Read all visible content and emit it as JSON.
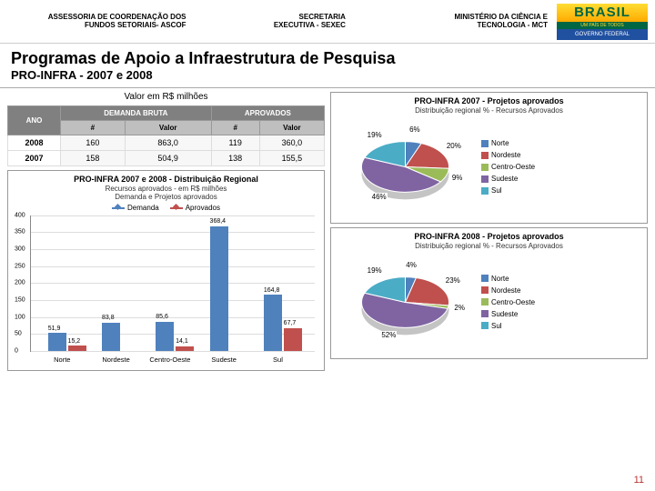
{
  "header": {
    "block1_l1": "ASSESSORIA DE COORDENAÇÃO DOS",
    "block1_l2": "FUNDOS SETORIAIS- ASCOF",
    "block2_l1": "SECRETARIA",
    "block2_l2": "EXECUTIVA - SEXEC",
    "block3_l1": "MINISTÉRIO DA CIÊNCIA E",
    "block3_l2": "TECNOLOGIA - MCT",
    "brasil": "BRASIL",
    "brasil_mid": "UM PAÍS DE TODOS",
    "brasil_bot": "GOVERNO FEDERAL"
  },
  "title": "Programas de Apoio a Infraestrutura de Pesquisa",
  "subtitle": "PRO-INFRA - 2007 e 2008",
  "table": {
    "caption": "Valor em R$ milhões",
    "head_ano": "ANO",
    "head_demanda": "DEMANDA BRUTA",
    "head_aprov": "APROVADOS",
    "sub_num": "#",
    "sub_valor": "Valor",
    "rows": [
      {
        "ano": "2008",
        "dn": "160",
        "dv": "863,0",
        "an": "119",
        "av": "360,0"
      },
      {
        "ano": "2007",
        "dn": "158",
        "dv": "504,9",
        "an": "138",
        "av": "155,5"
      }
    ]
  },
  "barchart": {
    "title": "PRO-INFRA 2007 e 2008 - Distribuição Regional",
    "sub1": "Recursos aprovados - em R$ milhões",
    "sub2": "Demanda e Projetos aprovados",
    "legend": {
      "demanda": "Demanda",
      "aprov": "Aprovados"
    },
    "colors": {
      "demanda": "#4f81bd",
      "aprov": "#c0504d",
      "grid": "#dddddd",
      "bg": "#ffffff"
    },
    "ylim": [
      0,
      400
    ],
    "ytick_step": 50,
    "cats": [
      "Norte",
      "Nordeste",
      "Centro-Oeste",
      "Sudeste",
      "Sul"
    ],
    "demanda_vals": [
      51.9,
      83.8,
      85.6,
      368.4,
      164.8
    ],
    "aprov_vals": [
      15.2,
      0,
      14.1,
      0,
      67.7
    ],
    "labels_demanda": [
      "51,9",
      "83,8",
      "85,6",
      "368,4",
      "164,8"
    ],
    "labels_aprov": [
      "15,2",
      "",
      "14,1",
      "",
      "67,7"
    ]
  },
  "pie2007": {
    "title": "PRO-INFRA 2007 - Projetos aprovados",
    "sub": "Distribuição regional % - Recursos Aprovados",
    "slices": [
      {
        "label": "Norte",
        "pct": 6,
        "color": "#4f81bd",
        "txt": "6%"
      },
      {
        "label": "Nordeste",
        "pct": 20,
        "color": "#c0504d",
        "txt": "20%"
      },
      {
        "label": "Centro-Oeste",
        "pct": 9,
        "color": "#9bbb59",
        "txt": "9%"
      },
      {
        "label": "Sudeste",
        "pct": 46,
        "color": "#8064a2",
        "txt": "46%"
      },
      {
        "label": "Sul",
        "pct": 19,
        "color": "#4bacc6",
        "txt": "19%"
      }
    ]
  },
  "pie2008": {
    "title": "PRO-INFRA 2008 - Projetos aprovados",
    "sub": "Distribuição regional % - Recursos Aprovados",
    "slices": [
      {
        "label": "Norte",
        "pct": 4,
        "color": "#4f81bd",
        "txt": "4%"
      },
      {
        "label": "Nordeste",
        "pct": 23,
        "color": "#c0504d",
        "txt": "23%"
      },
      {
        "label": "Centro-Oeste",
        "pct": 2,
        "color": "#9bbb59",
        "txt": "2%"
      },
      {
        "label": "Sudeste",
        "pct": 52,
        "color": "#8064a2",
        "txt": "52%"
      },
      {
        "label": "Sul",
        "pct": 19,
        "color": "#4bacc6",
        "txt": "19%"
      }
    ]
  },
  "page_num": "11"
}
